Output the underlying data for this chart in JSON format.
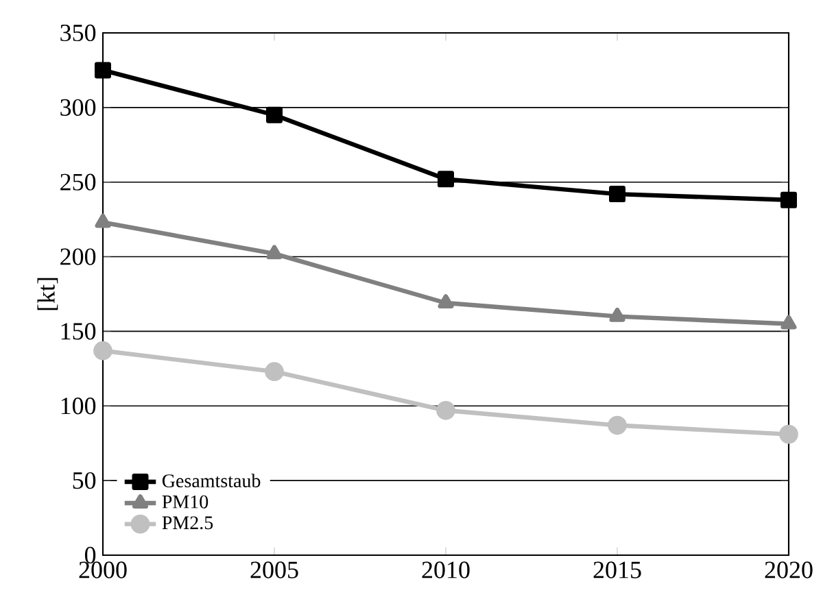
{
  "chart_data": {
    "type": "line",
    "ylabel": "[kt]",
    "x": [
      2000,
      2005,
      2010,
      2015,
      2020
    ],
    "series": [
      {
        "name": "Gesamtstaub",
        "color": "#000000",
        "marker": "square",
        "values": [
          325,
          295,
          252,
          242,
          238
        ]
      },
      {
        "name": "PM10",
        "color": "#808080",
        "marker": "triangle",
        "values": [
          223,
          202,
          169,
          160,
          155
        ]
      },
      {
        "name": "PM2.5",
        "color": "#c0c0c0",
        "marker": "circle",
        "values": [
          137,
          123,
          97,
          87,
          81
        ]
      }
    ],
    "xlim": [
      2000,
      2020
    ],
    "ylim": [
      0,
      350
    ],
    "xticks": [
      2000,
      2005,
      2010,
      2015,
      2020
    ],
    "yticks": [
      0,
      50,
      100,
      150,
      200,
      250,
      300,
      350
    ],
    "grid": "y",
    "legend": "bottom left",
    "line_style": "solid"
  }
}
